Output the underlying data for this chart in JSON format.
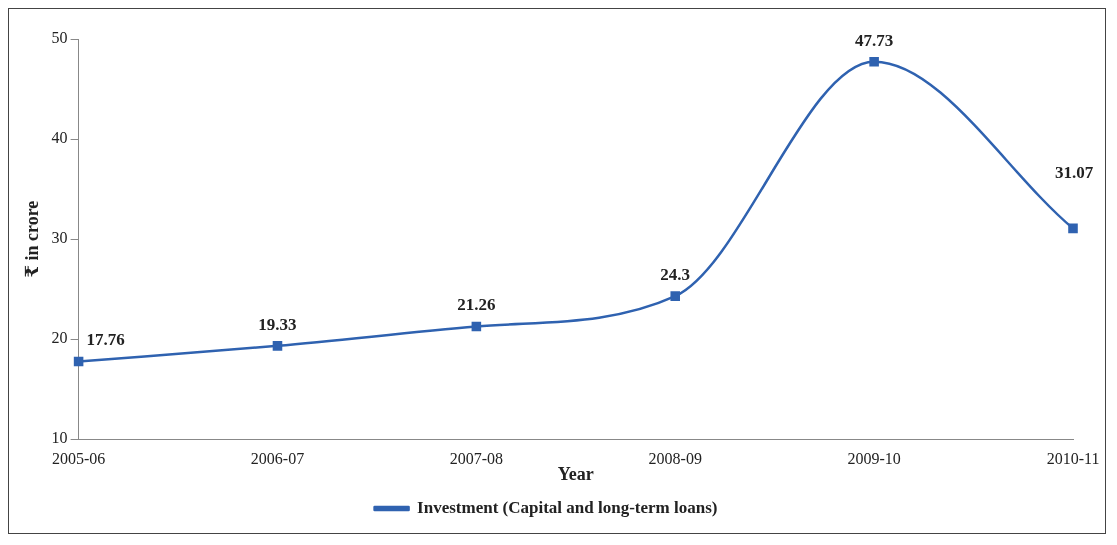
{
  "chart_data": {
    "type": "line",
    "xlabel": "Year",
    "ylabel": "₹ in crore",
    "categories": [
      "2005-06",
      "2006-07",
      "2007-08",
      "2008-09",
      "2009-10",
      "2010-11"
    ],
    "series": [
      {
        "name": "Investment (Capital and long-term loans)",
        "color": "#2f62b0",
        "values": [
          17.76,
          19.33,
          21.26,
          24.3,
          47.73,
          31.07
        ]
      }
    ],
    "ylim": [
      10,
      50
    ],
    "yticks": [
      10,
      20,
      30,
      40,
      50
    ],
    "grid": false,
    "legend": "bottom",
    "marker": "square",
    "line_style": "solid",
    "data_labels": true
  }
}
